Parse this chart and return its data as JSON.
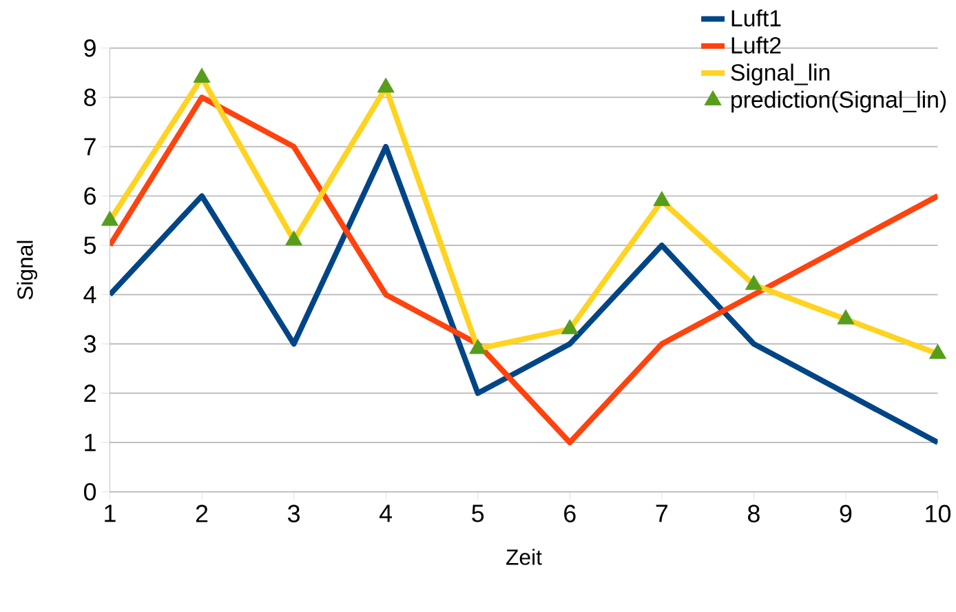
{
  "chart_data": {
    "type": "line",
    "xlabel": "Zeit",
    "ylabel": "Signal",
    "x": [
      1,
      2,
      3,
      4,
      5,
      6,
      7,
      8,
      9,
      10
    ],
    "xlim": [
      1,
      10
    ],
    "ylim": [
      0,
      9
    ],
    "xticks": [
      1,
      2,
      3,
      4,
      5,
      6,
      7,
      8,
      9,
      10
    ],
    "yticks": [
      0,
      1,
      2,
      3,
      4,
      5,
      6,
      7,
      8,
      9
    ],
    "grid": "y",
    "legend": "top right",
    "marker": "none",
    "line_style": "solid",
    "series": [
      {
        "name": "Luft1",
        "color": "#004586",
        "values": [
          4,
          6,
          3,
          7,
          2,
          3,
          5,
          3,
          2,
          1
        ]
      },
      {
        "name": "Luft2",
        "color": "#ff420e",
        "values": [
          5,
          8,
          7,
          4,
          3,
          1,
          3,
          4,
          5,
          6
        ]
      },
      {
        "name": "Signal_lin",
        "color": "#ffd320",
        "values": [
          5.5,
          8.4,
          5.1,
          8.2,
          2.9,
          3.3,
          5.9,
          4.2,
          3.5,
          2.8
        ]
      },
      {
        "name": "prediction(Signal_lin)",
        "type": "scatter",
        "marker": "triangle",
        "color": "#579d1c",
        "values": [
          5.5,
          8.4,
          5.1,
          8.2,
          2.9,
          3.3,
          5.9,
          4.2,
          3.5,
          2.8
        ]
      }
    ]
  }
}
